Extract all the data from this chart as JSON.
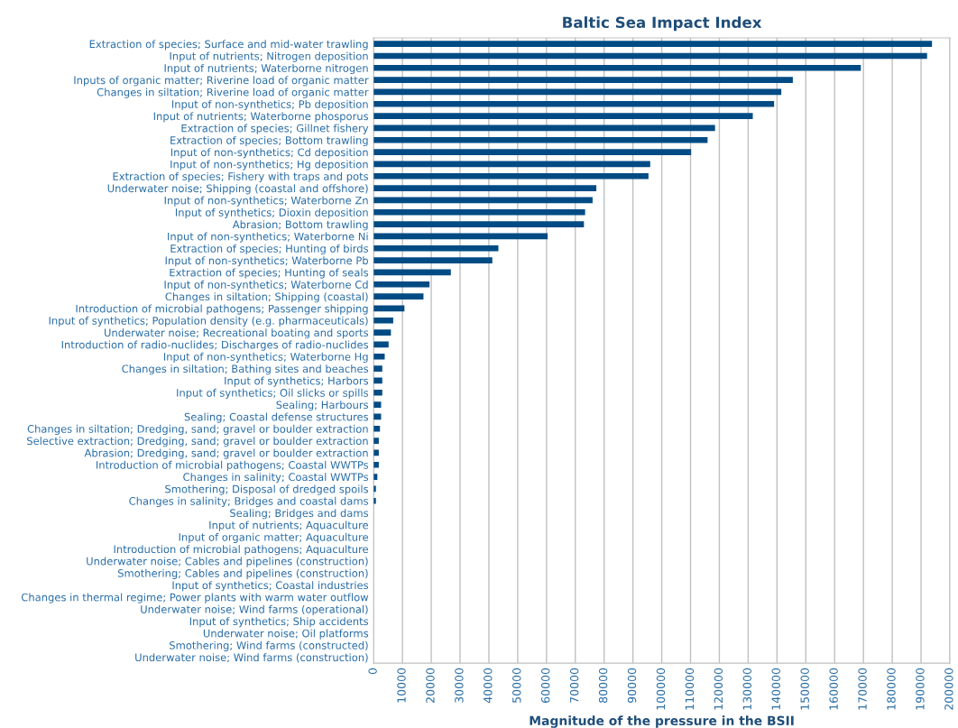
{
  "chart_data": {
    "type": "bar",
    "orientation": "horizontal",
    "title": "Baltic Sea Impact Index",
    "xlabel": "Magnitude of the pressure in the BSII",
    "categories": [
      "Extraction of species; Surface and mid-water trawling",
      "Input of nutrients; Nitrogen deposition",
      "Input of nutrients; Waterborne nitrogen",
      "Inputs of organic matter; Riverine load of organic matter",
      "Changes in siltation; Riverine load of organic matter",
      "Input of non-synthetics; Pb deposition",
      "Input of nutrients; Waterborne phosporus",
      "Extraction of species; Gillnet fishery",
      "Extraction of species; Bottom trawling",
      "Input of non-synthetics; Cd deposition",
      "Input of non-synthetics; Hg deposition",
      "Extraction of species; Fishery with traps and pots",
      "Underwater noise; Shipping (coastal and offshore)",
      "Input of non-synthetics; Waterborne Zn",
      "Input of synthetics; Dioxin deposition",
      "Abrasion; Bottom trawling",
      "Input of non-synthetics; Waterborne Ni",
      "Extraction of species; Hunting of birds",
      "Input of non-synthetics; Waterborne Pb",
      "Extraction of species; Hunting of seals",
      "Input of non-synthetics; Waterborne Cd",
      "Changes in siltation; Shipping (coastal)",
      "Introduction of microbial pathogens; Passenger shipping",
      "Input of synthetics; Population density (e.g. pharmaceuticals)",
      "Underwater noise; Recreational boating and sports",
      "Introduction of radio-nuclides; Discharges of radio-nuclides",
      "Input of non-synthetics; Waterborne Hg",
      "Changes in siltation; Bathing sites and beaches",
      "Input of synthetics; Harbors",
      "Input of synthetics; Oil slicks or spills",
      "Sealing; Harbours",
      "Sealing; Coastal defense structures",
      "Changes in siltation; Dredging, sand; gravel or boulder extraction",
      "Selective extraction; Dredging, sand; gravel or boulder extraction",
      "Abrasion; Dredging, sand; gravel or boulder extraction",
      "Introduction of microbial pathogens; Coastal WWTPs",
      "Changes in salinity; Coastal WWTPs",
      "Smothering; Disposal of dredged spoils",
      "Changes in salinity; Bridges and coastal dams",
      "Sealing; Bridges and dams",
      "Input of nutrients; Aquaculture",
      "Input of organic matter; Aquaculture",
      "Introduction of microbial pathogens; Aquaculture",
      "Underwater noise; Cables and pipelines (construction)",
      "Smothering; Cables and pipelines (construction)",
      "Input of synthetics; Coastal industries",
      "Changes in thermal regime; Power plants with warm water outflow",
      "Underwater noise; Wind farms (operational)",
      "Input of synthetics; Ship accidents",
      "Underwater noise; Oil platforms",
      "Smothering; Wind farms (constructed)",
      "Underwater noise; Wind farms (construction)"
    ],
    "values": [
      193800,
      192100,
      169100,
      145500,
      141500,
      139000,
      131600,
      118500,
      115900,
      110200,
      96000,
      95400,
      77300,
      76000,
      73400,
      73000,
      60400,
      43300,
      41200,
      26800,
      19400,
      17300,
      10700,
      6800,
      6000,
      5200,
      3850,
      3000,
      3000,
      3000,
      2600,
      2600,
      2200,
      1800,
      1800,
      1800,
      1300,
      800,
      800,
      0,
      0,
      0,
      0,
      0,
      0,
      0,
      0,
      0,
      0,
      0,
      0,
      0
    ],
    "color": "#004b84",
    "xlim": [
      0,
      200000
    ],
    "xticks": [
      0,
      10000,
      20000,
      30000,
      40000,
      50000,
      60000,
      70000,
      80000,
      90000,
      100000,
      110000,
      120000,
      130000,
      140000,
      150000,
      160000,
      170000,
      180000,
      190000,
      200000
    ],
    "grid": "x",
    "legend": false
  }
}
